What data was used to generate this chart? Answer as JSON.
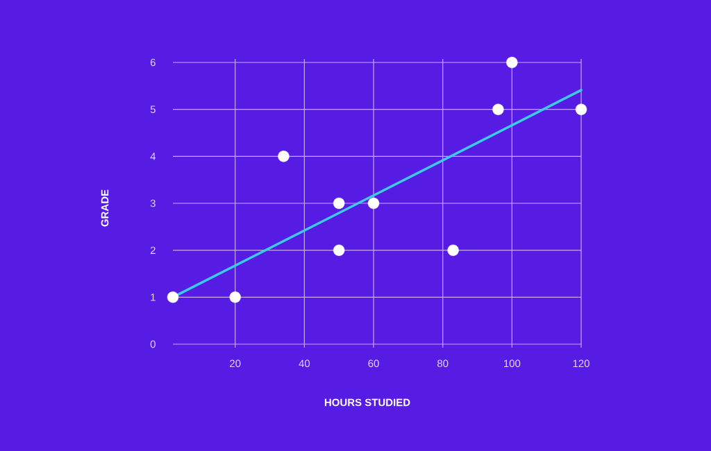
{
  "chart_data": {
    "type": "scatter",
    "xlabel": "HOURS STUDIED",
    "ylabel": "GRADE",
    "xlim": [
      2,
      120
    ],
    "ylim": [
      0,
      6
    ],
    "xticks": [
      20,
      40,
      60,
      80,
      100,
      120
    ],
    "yticks": [
      0,
      1,
      2,
      3,
      4,
      5,
      6
    ],
    "grid": true,
    "series": [
      {
        "marker": "circle",
        "color": "#ffffff",
        "x": [
          2,
          20,
          34,
          50,
          50,
          60,
          83,
          96,
          100,
          120
        ],
        "values": [
          1,
          1,
          4,
          3,
          2,
          3,
          2,
          5,
          6,
          5
        ]
      },
      {
        "type": "line",
        "marker": "none",
        "color": "#3ccbe6",
        "x": [
          2,
          120
        ],
        "values": [
          1,
          5.41
        ]
      }
    ]
  }
}
